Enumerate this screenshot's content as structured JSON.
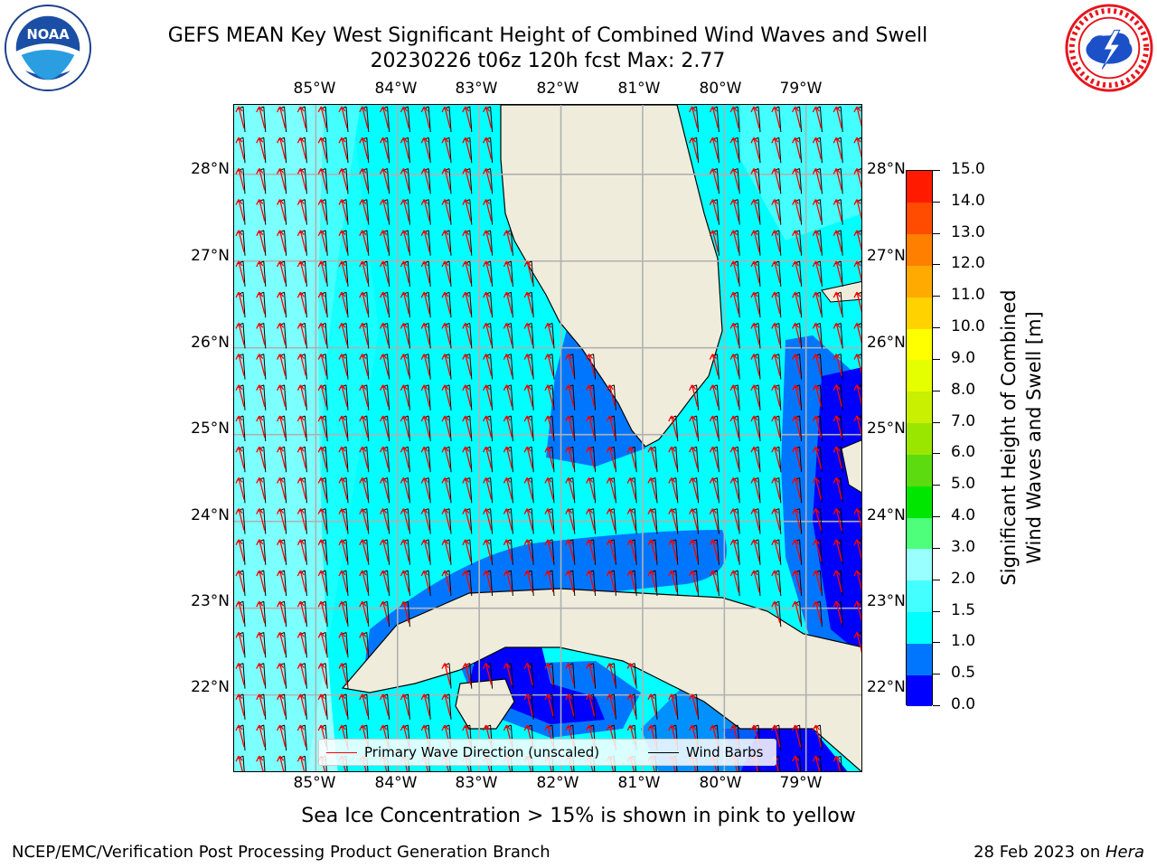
{
  "title": {
    "line1": "GEFS MEAN Key West Significant Height of Combined Wind Waves and Swell",
    "line2": "20230226 t06z 120h fcst   Max: 2.77"
  },
  "logos": {
    "left": {
      "icon": "noaa-logo",
      "text": "NOAA"
    },
    "right": {
      "icon": "nws-logo"
    }
  },
  "map": {
    "lon_labels": [
      "85°W",
      "84°W",
      "83°W",
      "82°W",
      "81°W",
      "80°W",
      "79°W"
    ],
    "lat_labels": [
      "28°N",
      "27°N",
      "26°N",
      "25°N",
      "24°N",
      "23°N",
      "22°N"
    ],
    "extent": {
      "lon": [
        -86.0,
        -78.3
      ],
      "lat": [
        21.1,
        28.8
      ]
    },
    "grid": true,
    "land_color": "#efecdc",
    "legend": {
      "wave_label": "Primary Wave Direction (unscaled)",
      "wave_color": "#ff0000",
      "barb_label": "Wind Barbs",
      "barb_color": "#000000",
      "placement": "lower-center"
    }
  },
  "colorbar": {
    "label_line1": "Significant Height of Combined",
    "label_line2": "Wind Waves and Swell [m]",
    "ticks": [
      "0.0",
      "0.5",
      "1.0",
      "1.5",
      "2.0",
      "3.0",
      "4.0",
      "5.0",
      "6.0",
      "7.0",
      "8.0",
      "9.0",
      "10.0",
      "11.0",
      "12.0",
      "13.0",
      "14.0",
      "15.0"
    ],
    "colors": [
      "#0000ff",
      "#0076ff",
      "#00ffff",
      "#44ffff",
      "#99ffff",
      "#4dff7a",
      "#00e600",
      "#5cdc10",
      "#9be600",
      "#c8f000",
      "#e6ff00",
      "#ffff00",
      "#ffd200",
      "#ffaa00",
      "#ff7f00",
      "#ff4c00",
      "#ff1a00"
    ]
  },
  "footer": {
    "note": "Sea Ice Concentration > 15% is shown in pink to yellow",
    "left": "NCEP/EMC/Verification Post Processing Product Generation Branch",
    "right_prefix": "28 Feb 2023 on ",
    "right_host": "Hera"
  }
}
